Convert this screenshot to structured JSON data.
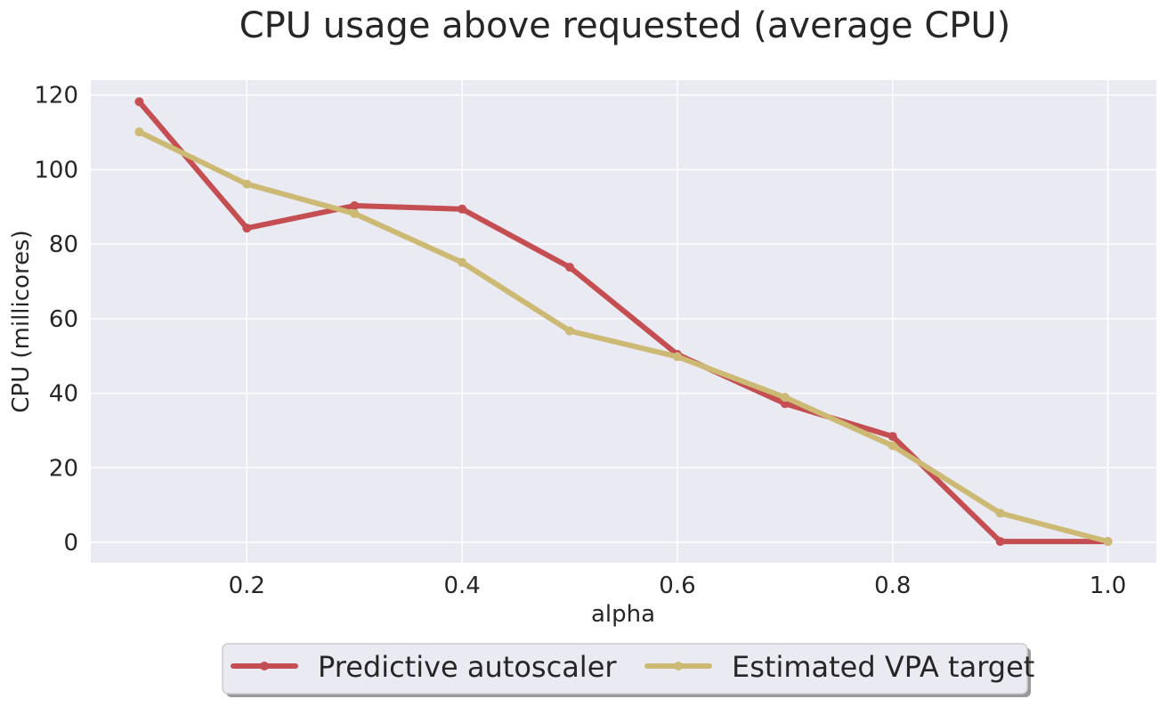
{
  "chart_data": {
    "type": "line",
    "title": "CPU usage above requested (average CPU)",
    "xlabel": "alpha",
    "ylabel": "CPU (millicores)",
    "x": [
      0.1,
      0.2,
      0.3,
      0.4,
      0.5,
      0.6,
      0.7,
      0.8,
      0.9,
      1.0
    ],
    "xlim": [
      0.055,
      1.045
    ],
    "ylim": [
      -5.5,
      124
    ],
    "xticks": [
      0.2,
      0.4,
      0.6,
      0.8,
      1.0
    ],
    "xtick_labels": [
      "0.2",
      "0.4",
      "0.6",
      "0.8",
      "1.0"
    ],
    "yticks": [
      0,
      20,
      40,
      60,
      80,
      100,
      120
    ],
    "ytick_labels": [
      "0",
      "20",
      "40",
      "60",
      "80",
      "100",
      "120"
    ],
    "grid": true,
    "legend_position": "bottom-center-outside",
    "series": [
      {
        "name": "Predictive autoscaler",
        "color": "#c44e52",
        "values": [
          118.2,
          84.3,
          90.3,
          89.4,
          73.8,
          50.4,
          37.2,
          28.4,
          0.2,
          0.2
        ]
      },
      {
        "name": "Estimated VPA target",
        "color": "#ccb974",
        "values": [
          110.1,
          96.1,
          88.2,
          75.1,
          56.7,
          49.8,
          38.9,
          25.9,
          7.8,
          0.2
        ]
      }
    ],
    "plot_background": "#eaeaf2",
    "grid_color": "#ffffff"
  }
}
